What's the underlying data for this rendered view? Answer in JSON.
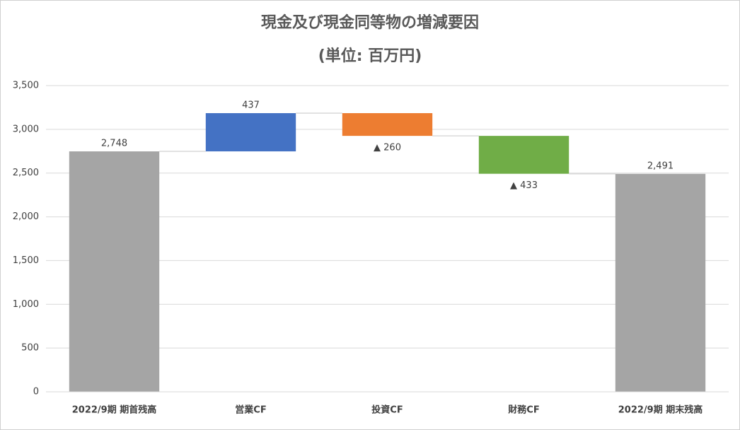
{
  "chart_data": {
    "type": "waterfall",
    "title": "現金及び現金同等物の増減要因",
    "subtitle": "(単位: 百万円)",
    "categories": [
      "2022/9期 期首残高",
      "営業CF",
      "投資CF",
      "財務CF",
      "2022/9期 期末残高"
    ],
    "values": [
      2748,
      437,
      -260,
      -433,
      2491
    ],
    "value_labels": [
      "2,748",
      "437",
      "▲ 260",
      "▲ 433",
      "2,491"
    ],
    "colors": [
      "#a5a5a5",
      "#4472c4",
      "#ed7d31",
      "#70ad47",
      "#a5a5a5"
    ],
    "ylim": [
      0,
      3500
    ],
    "yticks": [
      0,
      500,
      {
        "value": 1000,
        "label": "1,000"
      },
      {
        "value": 1500,
        "label": "1,500"
      },
      {
        "value": 2000,
        "label": "2,000"
      },
      {
        "value": 2500,
        "label": "2,500"
      },
      {
        "value": 3000,
        "label": "3,000"
      },
      {
        "value": 3500,
        "label": "3,500"
      }
    ],
    "grid": true
  }
}
